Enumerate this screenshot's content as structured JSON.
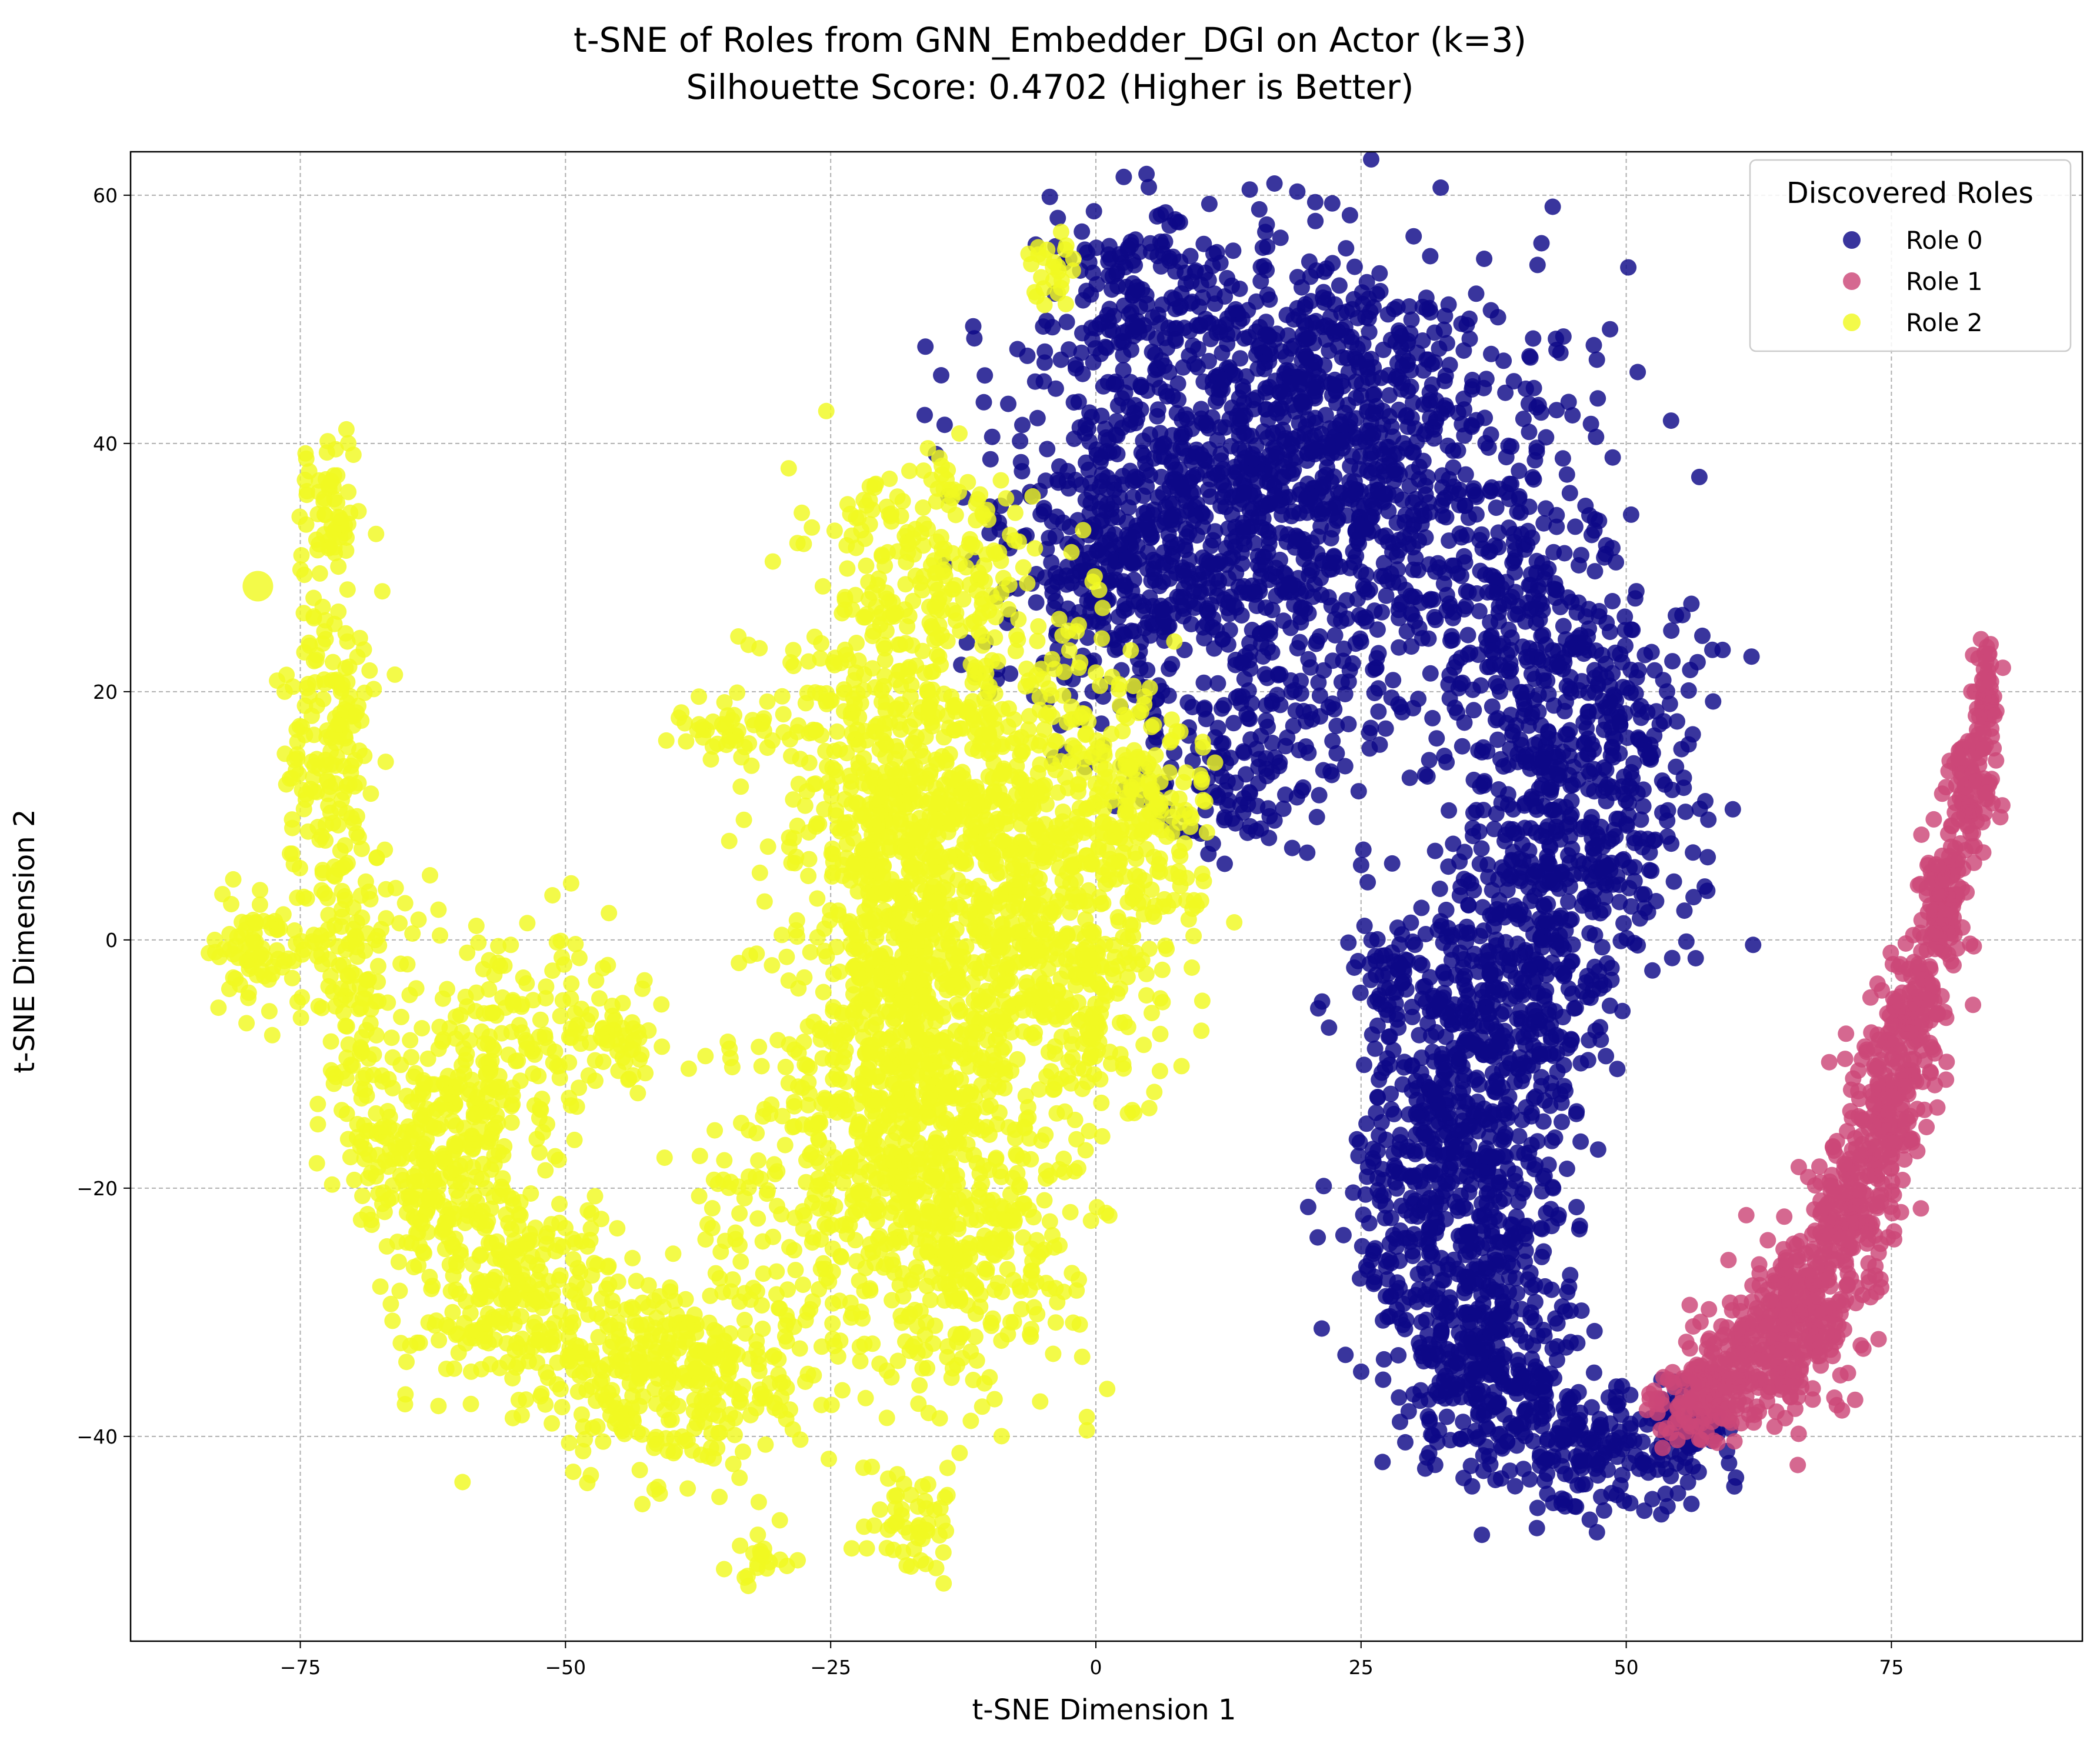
{
  "chart_data": {
    "type": "scatter",
    "title": "t-SNE of Roles from GNN_Embedder_DGI on Actor (k=3)",
    "subtitle": "Silhouette Score: 0.4702 (Higher is Better)",
    "xlabel": "t-SNE Dimension 1",
    "ylabel": "t-SNE Dimension 2",
    "xlim": [
      -91,
      93
    ],
    "ylim": [
      -56.5,
      63.5
    ],
    "xticks": [
      -75,
      -50,
      -25,
      0,
      25,
      50,
      75
    ],
    "yticks": [
      -40,
      -20,
      0,
      20,
      40,
      60
    ],
    "xtick_labels": [
      "−75",
      "−50",
      "−25",
      "0",
      "25",
      "50",
      "75"
    ],
    "ytick_labels": [
      "−40",
      "−20",
      "0",
      "20",
      "40",
      "60"
    ],
    "grid": true,
    "legend": {
      "title": "Discovered Roles",
      "position": "top-right"
    },
    "series": [
      {
        "name": "Role 0",
        "color": "#0d0887",
        "clusters": [
          {
            "cx": 10,
            "cy": 36,
            "sx": 10,
            "sy": 7,
            "n": 650
          },
          {
            "cx": 28,
            "cy": 38,
            "sx": 9,
            "sy": 8,
            "n": 500
          },
          {
            "cx": 18,
            "cy": 48,
            "sx": 9,
            "sy": 4,
            "n": 220
          },
          {
            "cx": 5,
            "cy": 53,
            "sx": 6,
            "sy": 3.5,
            "n": 120
          },
          {
            "cx": 2,
            "cy": 28,
            "sx": 6,
            "sy": 6,
            "n": 250
          },
          {
            "cx": 20,
            "cy": 22,
            "sx": 6,
            "sy": 6,
            "n": 150
          },
          {
            "cx": 12,
            "cy": 12,
            "sx": 5,
            "sy": 3,
            "n": 90
          },
          {
            "cx": 40,
            "cy": 24,
            "sx": 5,
            "sy": 7,
            "n": 220
          },
          {
            "cx": 48,
            "cy": 16,
            "sx": 5,
            "sy": 6,
            "n": 250
          },
          {
            "cx": 45,
            "cy": 6,
            "sx": 5,
            "sy": 5,
            "n": 220
          },
          {
            "cx": 39,
            "cy": -3,
            "sx": 5,
            "sy": 5,
            "n": 260
          },
          {
            "cx": 35,
            "cy": -13,
            "sx": 5,
            "sy": 5,
            "n": 280
          },
          {
            "cx": 34,
            "cy": -24,
            "sx": 5,
            "sy": 5,
            "n": 280
          },
          {
            "cx": 37,
            "cy": -34,
            "sx": 5,
            "sy": 4,
            "n": 260
          },
          {
            "cx": 46,
            "cy": -41,
            "sx": 5,
            "sy": 2.5,
            "n": 180
          },
          {
            "cx": 55,
            "cy": -40,
            "sx": 2.5,
            "sy": 2,
            "n": 70
          },
          {
            "cx": 27,
            "cy": -3,
            "sx": 1.5,
            "sy": 1.5,
            "n": 30
          },
          {
            "cx": 28,
            "cy": -14,
            "sx": 1.5,
            "sy": 8,
            "n": 40
          }
        ]
      },
      {
        "name": "Role 1",
        "color": "#cc4778",
        "clusters": [
          {
            "cx": 84,
            "cy": 20,
            "sx": 0.5,
            "sy": 2,
            "n": 60
          },
          {
            "cx": 82.5,
            "cy": 12,
            "sx": 1,
            "sy": 2.5,
            "n": 90
          },
          {
            "cx": 80,
            "cy": 3,
            "sx": 1.2,
            "sy": 3,
            "n": 110
          },
          {
            "cx": 77,
            "cy": -6,
            "sx": 1.5,
            "sy": 3,
            "n": 130
          },
          {
            "cx": 74,
            "cy": -14,
            "sx": 1.8,
            "sy": 3,
            "n": 140
          },
          {
            "cx": 71,
            "cy": -22,
            "sx": 2,
            "sy": 3,
            "n": 150
          },
          {
            "cx": 67,
            "cy": -29,
            "sx": 2.5,
            "sy": 2.5,
            "n": 170
          },
          {
            "cx": 63,
            "cy": -34,
            "sx": 3,
            "sy": 2.5,
            "n": 180
          },
          {
            "cx": 57,
            "cy": -37,
            "sx": 2.5,
            "sy": 2,
            "n": 110
          }
        ]
      },
      {
        "name": "Role 2",
        "color": "#f0f921",
        "clusters": [
          {
            "cx": -17,
            "cy": -8,
            "sx": 5,
            "sy": 12,
            "n": 900
          },
          {
            "cx": -8,
            "cy": 10,
            "sx": 7,
            "sy": 9,
            "n": 600
          },
          {
            "cx": -20,
            "cy": 16,
            "sx": 6,
            "sy": 8,
            "n": 300
          },
          {
            "cx": -25,
            "cy": -20,
            "sx": 7,
            "sy": 8,
            "n": 250
          },
          {
            "cx": -10,
            "cy": -25,
            "sx": 5,
            "sy": 6,
            "n": 200
          },
          {
            "cx": -40,
            "cy": -35,
            "sx": 7,
            "sy": 4,
            "n": 350
          },
          {
            "cx": -55,
            "cy": -28,
            "sx": 5,
            "sy": 4,
            "n": 250
          },
          {
            "cx": -63,
            "cy": -17,
            "sx": 4,
            "sy": 4,
            "n": 250
          },
          {
            "cx": -55,
            "cy": -8,
            "sx": 5,
            "sy": 5,
            "n": 180
          },
          {
            "cx": -70,
            "cy": -3,
            "sx": 3,
            "sy": 5,
            "n": 120
          },
          {
            "cx": -72,
            "cy": 15,
            "sx": 2.5,
            "sy": 7,
            "n": 180
          },
          {
            "cx": -72,
            "cy": 35,
            "sx": 1.5,
            "sy": 3,
            "n": 60
          },
          {
            "cx": -79,
            "cy": -1,
            "sx": 2,
            "sy": 2.5,
            "n": 70
          },
          {
            "cx": -35,
            "cy": 17,
            "sx": 3,
            "sy": 1.2,
            "n": 40
          },
          {
            "cx": -45,
            "cy": -8,
            "sx": 2,
            "sy": 2,
            "n": 40
          },
          {
            "cx": -18,
            "cy": -47,
            "sx": 2.5,
            "sy": 2,
            "n": 50
          },
          {
            "cx": -32,
            "cy": -50,
            "sx": 1.5,
            "sy": 1.2,
            "n": 20
          },
          {
            "cx": -15,
            "cy": 30,
            "sx": 5,
            "sy": 3,
            "n": 120
          },
          {
            "cx": -2,
            "cy": -5,
            "sx": 4,
            "sy": 6,
            "n": 200
          },
          {
            "cx": 4,
            "cy": 8,
            "sx": 3,
            "sy": 6,
            "n": 120
          },
          {
            "cx": -21,
            "cy": 35,
            "sx": 1.5,
            "sy": 1.2,
            "n": 20
          },
          {
            "cx": -14,
            "cy": 37,
            "sx": 2,
            "sy": 1.5,
            "n": 20
          },
          {
            "cx": -4,
            "cy": 54,
            "sx": 1.2,
            "sy": 1.5,
            "n": 25
          },
          {
            "cx": 8,
            "cy": 10,
            "sx": 2,
            "sy": 2.5,
            "n": 30
          }
        ],
        "extra_points": [
          [
            -79,
            28.5
          ]
        ]
      }
    ]
  }
}
